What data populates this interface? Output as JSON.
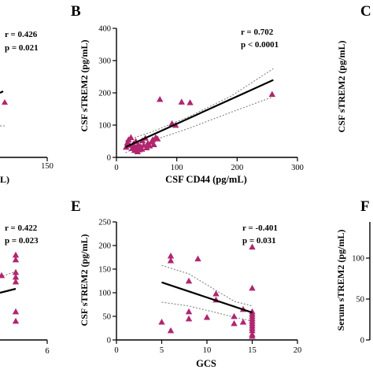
{
  "panels": {
    "A": {
      "r": "r = 0.426",
      "p": "p = 0.021",
      "x_tick": "150",
      "x_label_fragment": "L)"
    },
    "C": {
      "letter": "C",
      "ylabel": "CSF sTREM2 (pg/mL)"
    },
    "D": {
      "r": "r = 0.422",
      "p": "p = 0.023",
      "x_tick": "6"
    },
    "F": {
      "letter": "F",
      "ylabel": "Serum sTREM2 (pg/mL)",
      "y_ticks": [
        "100",
        "50",
        "0"
      ]
    }
  },
  "chart_data": [
    {
      "type": "scatter",
      "panel": "B",
      "letter": "B",
      "xlabel": "CSF CD44 (pg/mL)",
      "ylabel": "CSF sTREM2 (pg/mL)",
      "xlim": [
        0,
        300
      ],
      "ylim": [
        0,
        400
      ],
      "x_ticks": [
        0,
        100,
        200,
        300
      ],
      "y_ticks": [
        0,
        100,
        200,
        300,
        400
      ],
      "annotation": {
        "r": "r = 0.702",
        "p": "p < 0.0001"
      },
      "marker_color": "#b0266f",
      "fit": {
        "x": [
          15,
          260
        ],
        "y": [
          32,
          240
        ]
      },
      "ci_upper": {
        "x": [
          15,
          60,
          120,
          190,
          260
        ],
        "y": [
          52,
          80,
          126,
          190,
          275
        ]
      },
      "ci_lower": {
        "x": [
          15,
          60,
          120,
          190,
          260
        ],
        "y": [
          15,
          52,
          90,
          140,
          188
        ]
      },
      "points": {
        "x": [
          16,
          18,
          20,
          22,
          24,
          26,
          28,
          30,
          30,
          32,
          33,
          35,
          36,
          38,
          40,
          42,
          43,
          45,
          48,
          50,
          52,
          55,
          58,
          60,
          62,
          65,
          68,
          72,
          92,
          98,
          108,
          122,
          258
        ],
        "y": [
          32,
          45,
          55,
          38,
          62,
          28,
          42,
          35,
          22,
          50,
          30,
          18,
          40,
          24,
          34,
          26,
          52,
          38,
          60,
          30,
          44,
          36,
          48,
          55,
          40,
          62,
          58,
          180,
          105,
          100,
          172,
          170,
          196
        ]
      }
    },
    {
      "type": "scatter",
      "panel": "E",
      "letter": "E",
      "xlabel": "GCS",
      "ylabel": "CSF sTREM2 (pg/mL)",
      "xlim": [
        0,
        20
      ],
      "ylim": [
        0,
        250
      ],
      "x_ticks": [
        0,
        5,
        10,
        15,
        20
      ],
      "y_ticks": [
        0,
        50,
        100,
        150,
        200,
        250
      ],
      "annotation": {
        "r": "r = -0.401",
        "p": "p = 0.031"
      },
      "marker_color": "#b0266f",
      "fit": {
        "x": [
          5,
          15
        ],
        "y": [
          122,
          58
        ]
      },
      "ci_upper": {
        "x": [
          5,
          8,
          11,
          13,
          15
        ],
        "y": [
          158,
          140,
          105,
          82,
          72
        ]
      },
      "ci_lower": {
        "x": [
          5,
          8,
          11,
          13,
          15
        ],
        "y": [
          80,
          72,
          58,
          48,
          40
        ]
      },
      "points": {
        "x": [
          5,
          6,
          6,
          6,
          8,
          8,
          8,
          9,
          10,
          11,
          11,
          13,
          13,
          14,
          14,
          15,
          15,
          15,
          15,
          15,
          15,
          15,
          15,
          15,
          15,
          15,
          15,
          15
        ],
        "y": [
          38,
          178,
          168,
          20,
          125,
          60,
          45,
          172,
          48,
          98,
          85,
          50,
          35,
          38,
          65,
          197,
          110,
          60,
          55,
          50,
          45,
          40,
          35,
          30,
          25,
          20,
          12,
          8
        ]
      }
    }
  ]
}
